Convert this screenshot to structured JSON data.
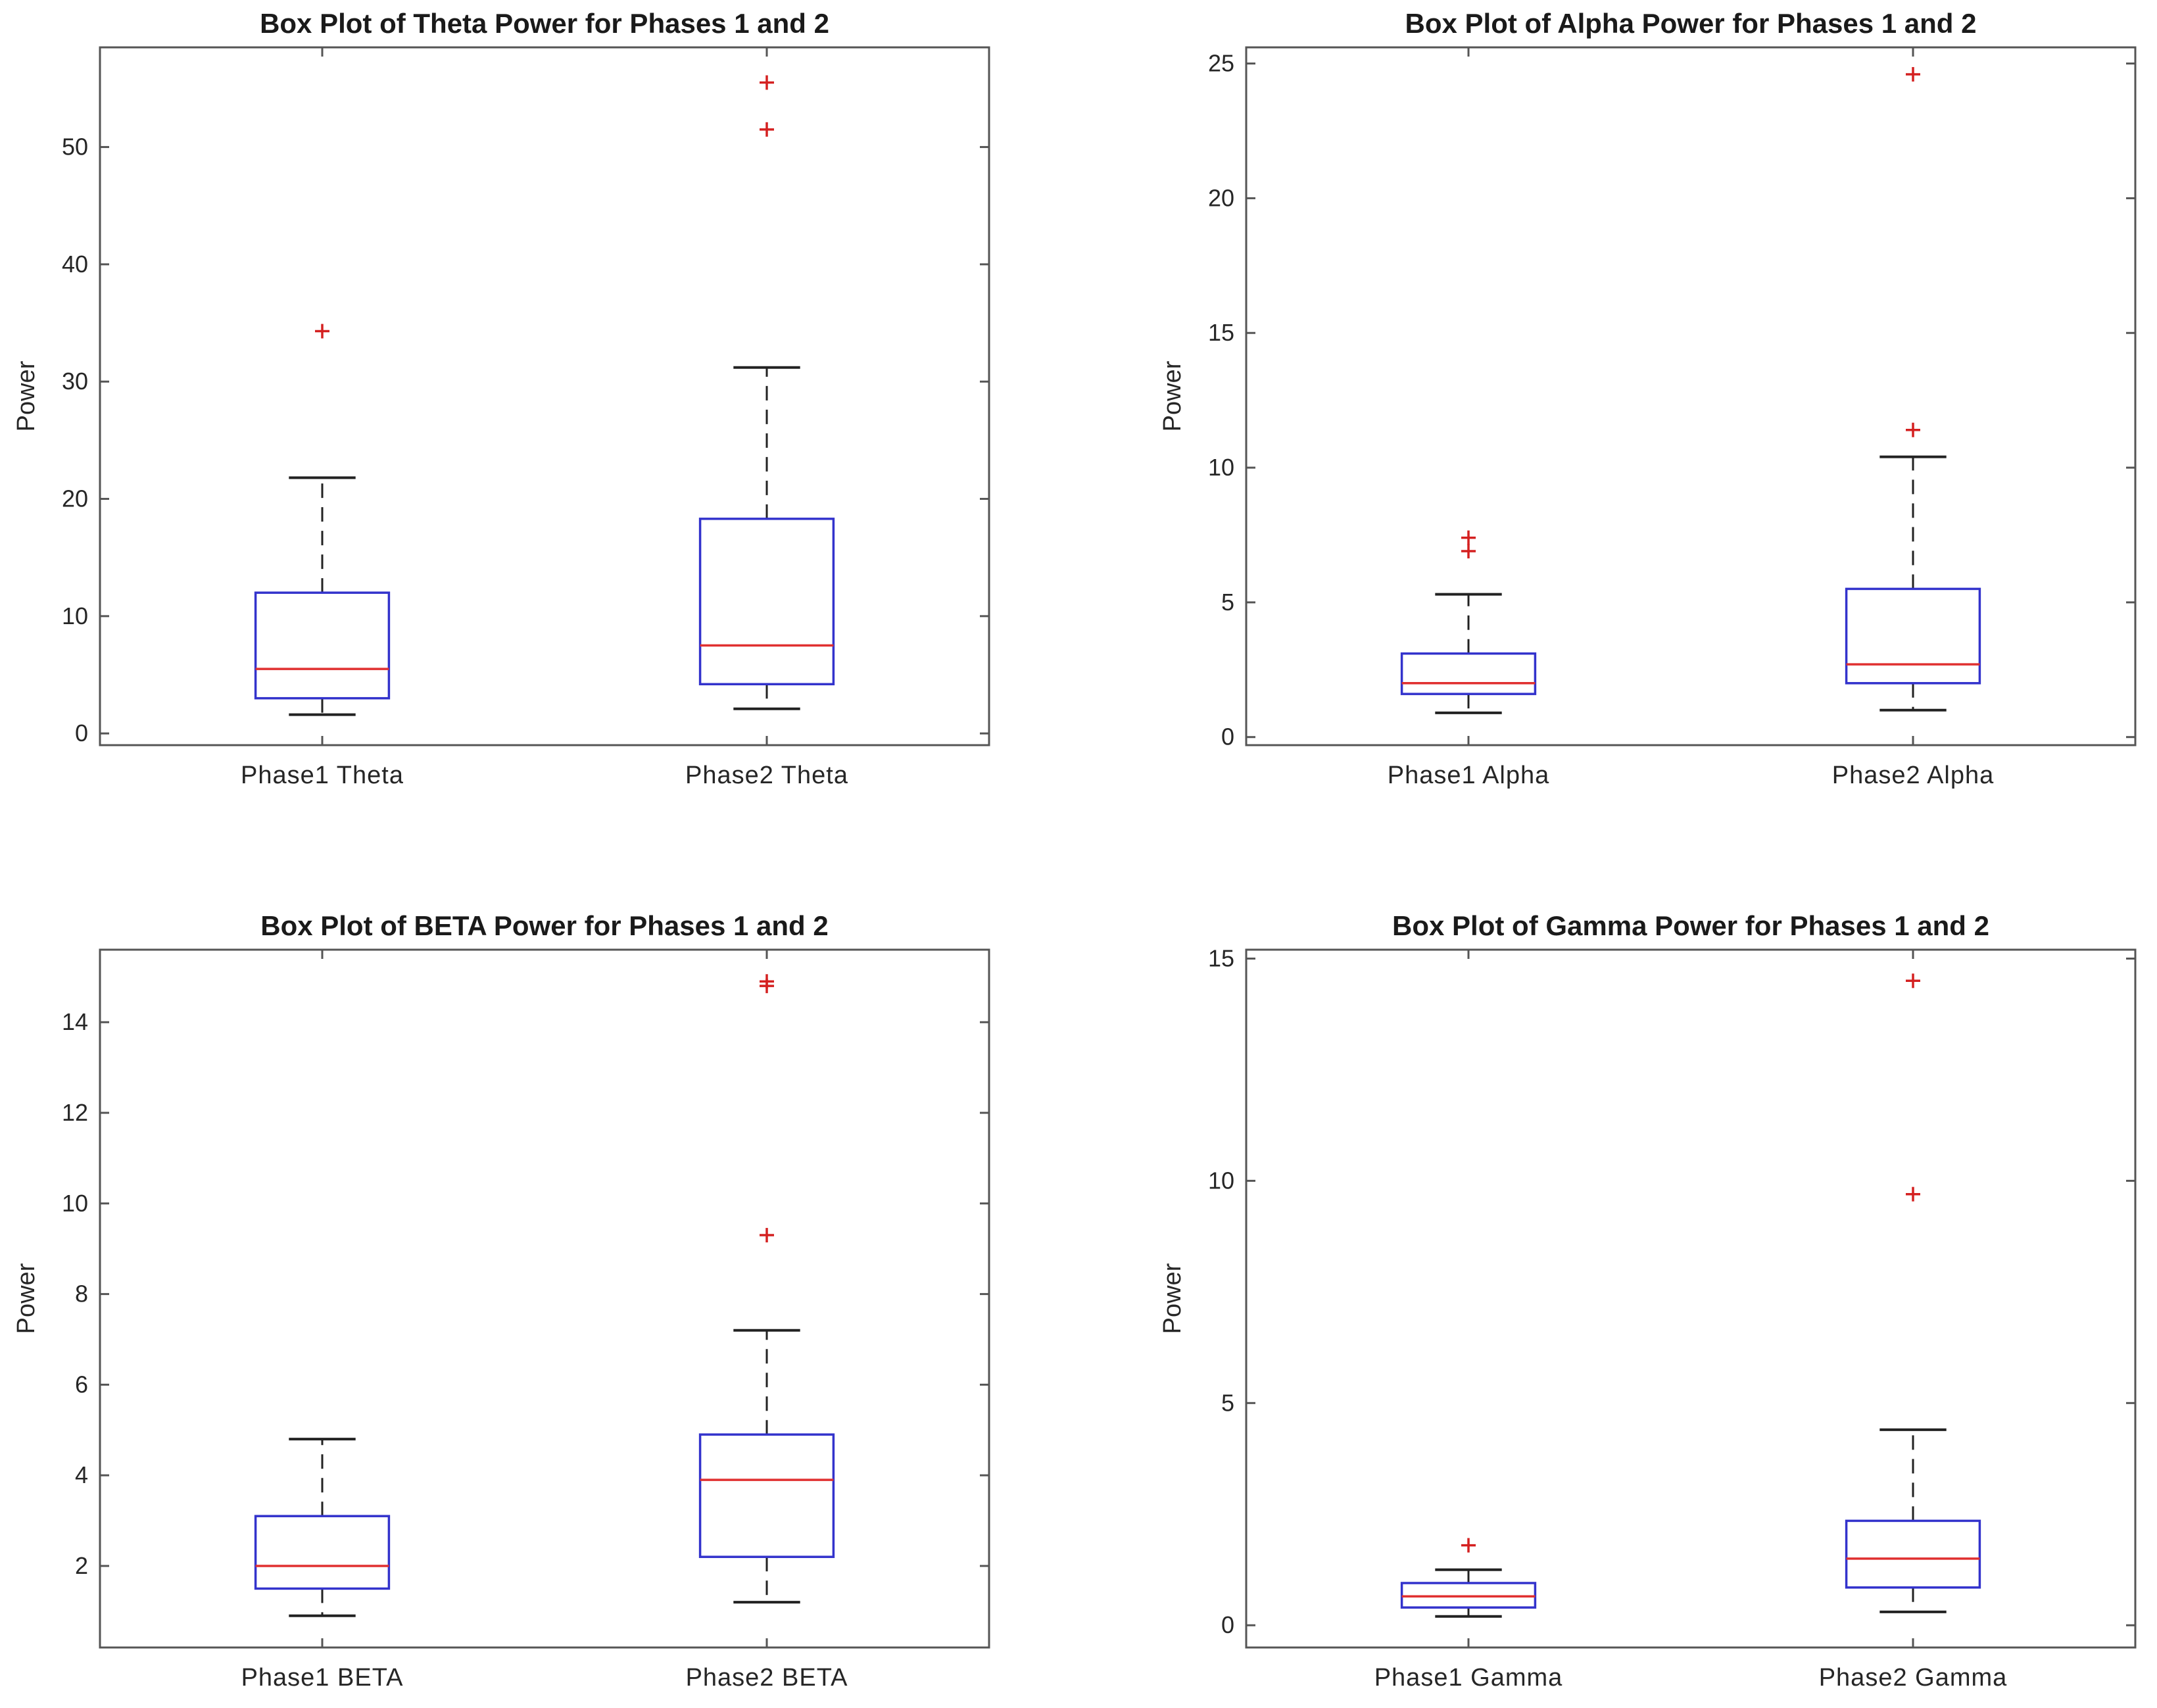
{
  "colors": {
    "axis": "#555555",
    "box": "#3333cc",
    "median": "#e03030",
    "whisker": "#222222",
    "outlier": "#d42020"
  },
  "chart_data": [
    {
      "type": "box",
      "title": "Box Plot of Theta Power for Phases 1 and 2",
      "ylabel": "Power",
      "ylim": [
        -1,
        58.5
      ],
      "yticks": [
        0,
        10,
        20,
        30,
        40,
        50
      ],
      "categories": [
        "Phase1 Theta",
        "Phase2 Theta"
      ],
      "boxes": [
        {
          "whisker_low": 1.6,
          "q1": 3.0,
          "median": 5.5,
          "q3": 12.0,
          "whisker_high": 21.8,
          "outliers": [
            34.3
          ]
        },
        {
          "whisker_low": 2.1,
          "q1": 4.2,
          "median": 7.5,
          "q3": 18.3,
          "whisker_high": 31.2,
          "outliers": [
            51.5,
            55.5
          ]
        }
      ]
    },
    {
      "type": "box",
      "title": "Box Plot of Alpha Power for Phases 1 and 2",
      "ylabel": "Power",
      "ylim": [
        -0.3,
        25.6
      ],
      "yticks": [
        0,
        5,
        10,
        15,
        20,
        25
      ],
      "categories": [
        "Phase1 Alpha",
        "Phase2 Alpha"
      ],
      "boxes": [
        {
          "whisker_low": 0.9,
          "q1": 1.6,
          "median": 2.0,
          "q3": 3.1,
          "whisker_high": 5.3,
          "outliers": [
            6.9,
            7.4
          ]
        },
        {
          "whisker_low": 1.0,
          "q1": 2.0,
          "median": 2.7,
          "q3": 5.5,
          "whisker_high": 10.4,
          "outliers": [
            11.4,
            24.6
          ]
        }
      ]
    },
    {
      "type": "box",
      "title": "Box Plot of BETA Power for Phases 1 and 2",
      "ylabel": "Power",
      "ylim": [
        0.2,
        15.6
      ],
      "yticks": [
        2,
        4,
        6,
        8,
        10,
        12,
        14
      ],
      "categories": [
        "Phase1 BETA",
        "Phase2 BETA"
      ],
      "boxes": [
        {
          "whisker_low": 0.9,
          "q1": 1.5,
          "median": 2.0,
          "q3": 3.1,
          "whisker_high": 4.8,
          "outliers": []
        },
        {
          "whisker_low": 1.2,
          "q1": 2.2,
          "median": 3.9,
          "q3": 4.9,
          "whisker_high": 7.2,
          "outliers": [
            9.3,
            14.8,
            14.9
          ]
        }
      ]
    },
    {
      "type": "box",
      "title": "Box Plot of Gamma Power for Phases 1 and 2",
      "ylabel": "Power",
      "ylim": [
        -0.5,
        15.2
      ],
      "yticks": [
        0,
        5,
        10,
        15
      ],
      "categories": [
        "Phase1 Gamma",
        "Phase2 Gamma"
      ],
      "boxes": [
        {
          "whisker_low": 0.2,
          "q1": 0.4,
          "median": 0.65,
          "q3": 0.95,
          "whisker_high": 1.25,
          "outliers": [
            1.8
          ]
        },
        {
          "whisker_low": 0.3,
          "q1": 0.85,
          "median": 1.5,
          "q3": 2.35,
          "whisker_high": 4.4,
          "outliers": [
            9.7,
            14.5
          ]
        }
      ]
    }
  ]
}
